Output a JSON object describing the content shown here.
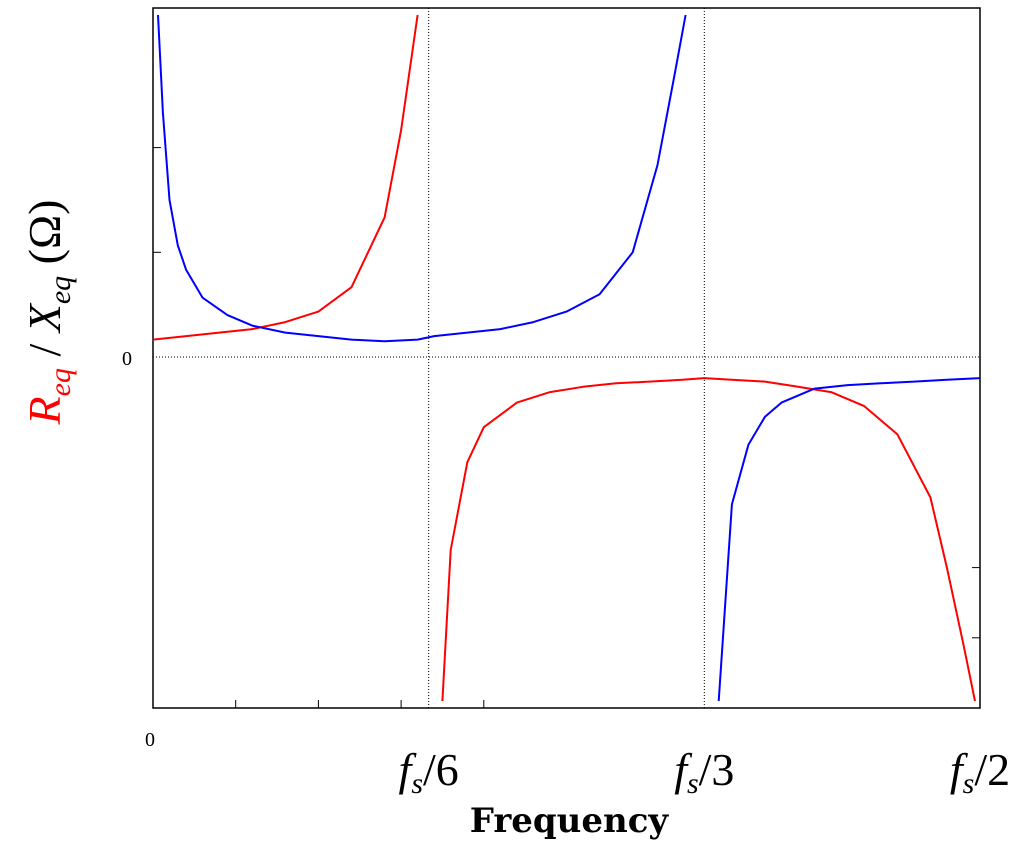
{
  "chart_data": {
    "type": "line",
    "xlabel": "Frequency",
    "ylabel": {
      "r_symbol": "R",
      "r_subscript": "eq",
      "separator": " / ",
      "x_symbol": "X",
      "x_subscript": "eq",
      "unit": " (Ω)"
    },
    "x_tick_origin_label": "0",
    "y_tick_zero_label": "0",
    "fs_ticks": [
      {
        "symbol": "f",
        "subscript": "s",
        "divisor": "/6",
        "value": 0.16667
      },
      {
        "symbol": "f",
        "subscript": "s",
        "divisor": "/3",
        "value": 0.33333
      },
      {
        "symbol": "f",
        "subscript": "s",
        "divisor": "/2",
        "value": 0.5
      }
    ],
    "x_unit": "fraction of sampling frequency fs",
    "xlim": [
      0,
      0.5
    ],
    "ylim": [
      -1.0,
      1.0
    ],
    "reference_lines": {
      "x": [
        0.16667,
        0.33333
      ],
      "y": [
        0
      ]
    },
    "series": [
      {
        "color": "#ff0000",
        "x": [
          0.0,
          0.02,
          0.04,
          0.06,
          0.08,
          0.1,
          0.12,
          0.14,
          0.15,
          0.16,
          0.1667,
          0.175,
          0.18,
          0.19,
          0.2,
          0.22,
          0.24,
          0.26,
          0.28,
          0.3,
          0.32,
          0.3333,
          0.35,
          0.37,
          0.39,
          0.41,
          0.43,
          0.45,
          0.47,
          0.48,
          0.49,
          0.497
        ],
        "y": [
          0.05,
          0.06,
          0.07,
          0.08,
          0.1,
          0.13,
          0.2,
          0.4,
          0.65,
          0.98,
          null,
          -0.98,
          -0.55,
          -0.3,
          -0.2,
          -0.13,
          -0.1,
          -0.085,
          -0.075,
          -0.07,
          -0.065,
          -0.06,
          -0.065,
          -0.07,
          -0.085,
          -0.1,
          -0.14,
          -0.22,
          -0.4,
          -0.6,
          -0.82,
          -0.98
        ]
      },
      {
        "color": "#0000ff",
        "x": [
          0.003,
          0.006,
          0.01,
          0.015,
          0.02,
          0.03,
          0.045,
          0.06,
          0.08,
          0.1,
          0.12,
          0.14,
          0.16,
          0.17,
          0.19,
          0.21,
          0.23,
          0.25,
          0.27,
          0.29,
          0.305,
          0.315,
          0.322,
          0.3333,
          0.342,
          0.35,
          0.36,
          0.37,
          0.38,
          0.4,
          0.42,
          0.44,
          0.46,
          0.48,
          0.5
        ],
        "y": [
          0.98,
          0.7,
          0.45,
          0.32,
          0.25,
          0.17,
          0.12,
          0.09,
          0.07,
          0.06,
          0.05,
          0.045,
          0.05,
          0.06,
          0.07,
          0.08,
          0.1,
          0.13,
          0.18,
          0.3,
          0.55,
          0.8,
          0.98,
          null,
          -0.98,
          -0.42,
          -0.25,
          -0.17,
          -0.13,
          -0.09,
          -0.08,
          -0.075,
          -0.07,
          -0.065,
          -0.06
        ]
      }
    ],
    "grid": false,
    "legend": "none"
  }
}
